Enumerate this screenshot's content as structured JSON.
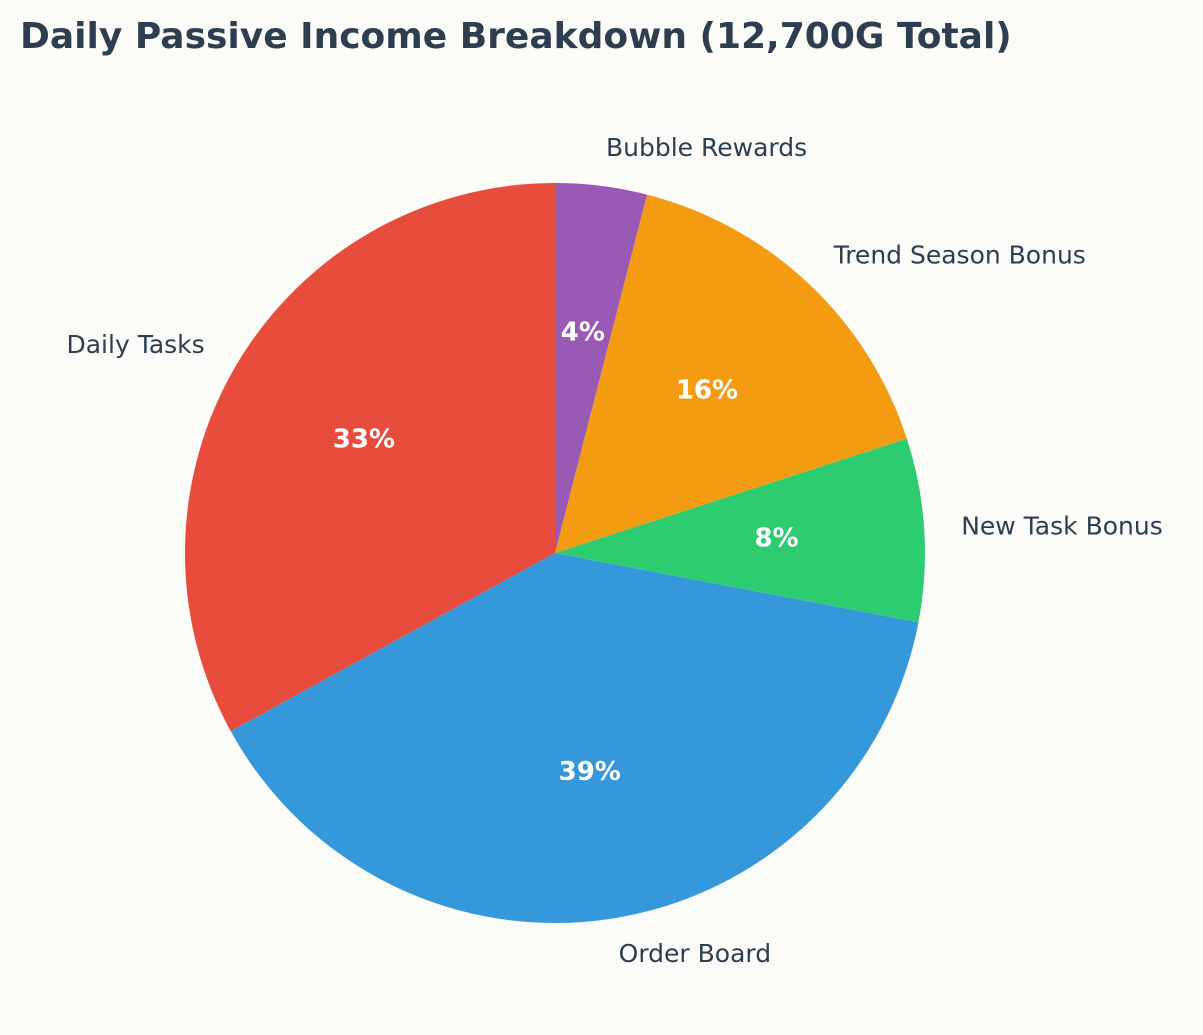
{
  "chart_data": {
    "type": "pie",
    "title": "Daily Passive Income Breakdown (12,700G Total)",
    "categories": [
      "Daily Tasks",
      "Order Board",
      "New Task Bonus",
      "Trend Season Bonus",
      "Bubble Rewards"
    ],
    "values": [
      33,
      39,
      8,
      16,
      4
    ],
    "value_labels": [
      "33%",
      "39%",
      "8%",
      "16%",
      "4%"
    ],
    "colors": [
      "#e74c3c",
      "#3498db",
      "#2ecc71",
      "#f39c12",
      "#9b59b6"
    ]
  }
}
